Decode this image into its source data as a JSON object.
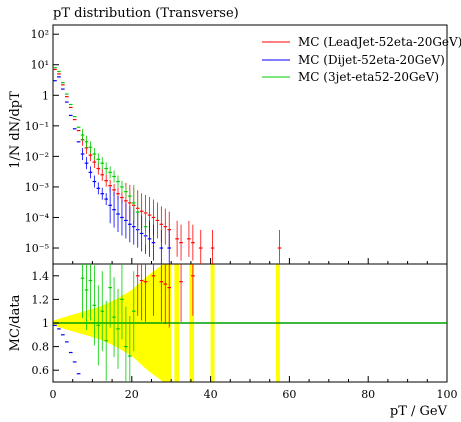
{
  "chart_data": {
    "type": "scatter",
    "title": "pT distribution (Transverse)",
    "xlabel": "pT / GeV",
    "ylabel": "1/N dN/dpT",
    "ratio_ylabel": "MC/data",
    "xlim": [
      0,
      100
    ],
    "ylim": [
      3e-06,
      200
    ],
    "yscale": "log",
    "ratio_ylim": [
      0.5,
      1.5
    ],
    "x_ticks": [
      0,
      20,
      40,
      60,
      80,
      100
    ],
    "y_ticks": [
      {
        "v": 100,
        "label": "10²"
      },
      {
        "v": 10,
        "label": "10¹"
      },
      {
        "v": 1,
        "label": "1"
      },
      {
        "v": 0.1,
        "label": "10⁻¹"
      },
      {
        "v": 0.01,
        "label": "10⁻²"
      },
      {
        "v": 0.001,
        "label": "10⁻³"
      },
      {
        "v": 0.0001,
        "label": "10⁻⁴"
      },
      {
        "v": 1e-05,
        "label": "10⁻⁵"
      }
    ],
    "ratio_ticks": [
      {
        "v": 0.6,
        "label": "0.6"
      },
      {
        "v": 0.8,
        "label": "0.8"
      },
      {
        "v": 1.0,
        "label": "1"
      },
      {
        "v": 1.2,
        "label": "1.2"
      },
      {
        "v": 1.4,
        "label": "1.4"
      }
    ],
    "legend_position": "top-right",
    "series": [
      {
        "name": "MC (LeadJet-52eta-20GeV)",
        "color": "#ff0000",
        "x": [
          0.5,
          1.5,
          2.5,
          3.5,
          4.5,
          5.5,
          6.5,
          7.5,
          8.5,
          9.5,
          10.5,
          11.5,
          12.5,
          13.5,
          14.5,
          15.5,
          16.5,
          17.5,
          18.5,
          19.5,
          20.5,
          21.5,
          22.5,
          23.5,
          24.5,
          25.5,
          26.5,
          27.5,
          28.5,
          29.5,
          31.5,
          32.5,
          34.5,
          35.5,
          37.5,
          40.5,
          57.5
        ],
        "y": [
          7,
          5,
          2.2,
          0.9,
          0.4,
          0.16,
          0.07,
          0.035,
          0.019,
          0.011,
          0.0065,
          0.004,
          0.0025,
          0.0016,
          0.0011,
          0.0008,
          0.0006,
          0.00045,
          0.00035,
          0.0003,
          0.00025,
          0.0002,
          0.00016,
          0.00014,
          0.00012,
          0.0001,
          8e-05,
          6e-05,
          5e-05,
          4e-05,
          2e-05,
          1.5e-05,
          2e-05,
          1.5e-05,
          1e-05,
          1e-05,
          1e-05
        ]
      },
      {
        "name": "MC (Dijet-52eta-20GeV)",
        "color": "#0000ff",
        "x": [
          0.5,
          1.5,
          2.5,
          3.5,
          4.5,
          5.5,
          6.5,
          7.5,
          8.5,
          9.5,
          10.5,
          11.5,
          12.5,
          13.5,
          14.5,
          15.5,
          16.5,
          17.5,
          18.5,
          19.5,
          20.5,
          21.5,
          22.5,
          23.5,
          24.5,
          25.5,
          27.5,
          29.5
        ],
        "y": [
          3,
          4,
          1.6,
          0.6,
          0.22,
          0.08,
          0.03,
          0.012,
          0.006,
          0.003,
          0.0015,
          0.0009,
          0.0006,
          0.0004,
          0.00025,
          0.00018,
          0.00013,
          0.0001,
          8e-05,
          6e-05,
          5e-05,
          4e-05,
          3e-05,
          2.5e-05,
          2e-05,
          1.5e-05,
          1e-05,
          1e-05
        ]
      },
      {
        "name": "MC (3jet-eta52-20GeV)",
        "color": "#00cc00",
        "x": [
          0.5,
          1.5,
          2.5,
          3.5,
          4.5,
          5.5,
          6.5,
          7.5,
          8.5,
          9.5,
          10.5,
          11.5,
          12.5,
          13.5,
          14.5,
          15.5,
          16.5,
          17.5,
          18.5,
          19.5,
          20.5,
          21.5,
          23.5
        ],
        "y": [
          8,
          6,
          2.6,
          1.1,
          0.5,
          0.2,
          0.09,
          0.05,
          0.03,
          0.02,
          0.012,
          0.008,
          0.006,
          0.004,
          0.003,
          0.0022,
          0.0015,
          0.001,
          0.0007,
          0.0005,
          0.0003,
          0.00015,
          5e-05
        ]
      }
    ],
    "ratio_series": [
      {
        "name": "MC (Dijet-52eta-20GeV)",
        "x": [
          0.5,
          1.5,
          2.5,
          3.5,
          4.5,
          5.5,
          6.5
        ],
        "y": [
          0.98,
          0.95,
          0.9,
          0.84,
          0.75,
          0.67,
          0.57
        ]
      },
      {
        "name": "MC (3jet-eta52-20GeV)",
        "x": [
          7.5,
          8.5,
          9.5,
          10.5,
          11.5,
          12.5,
          13.5,
          14.5,
          15.5,
          16.5,
          17.5,
          18.5,
          19.5,
          20.5
        ],
        "y": [
          1.38,
          1.28,
          1.36,
          1.15,
          0.98,
          1.1,
          0.85,
          1.3,
          1.05,
          0.95,
          1.2,
          0.8,
          0.72,
          1.1
        ]
      },
      {
        "name": "MC (LeadJet-52eta-20GeV)",
        "x": [
          21.5,
          22.5,
          23.5,
          25.5,
          27.5,
          28.5,
          29.5,
          32.5,
          35.5
        ],
        "y": [
          1.4,
          1.36,
          1.35,
          1.4,
          1.35,
          1.33,
          1.3,
          1.35,
          1.4
        ]
      }
    ],
    "ratio_band": {
      "color": "#ffff00",
      "x": [
        0,
        2,
        4,
        6,
        8,
        10,
        12,
        14,
        16,
        18,
        20,
        22,
        24,
        26,
        28,
        30
      ],
      "half_width": [
        0.02,
        0.04,
        0.06,
        0.08,
        0.1,
        0.12,
        0.14,
        0.17,
        0.2,
        0.24,
        0.28,
        0.34,
        0.4,
        0.45,
        0.5,
        0.5
      ],
      "spikes": [
        [
          30.8,
          32.0
        ],
        [
          34.6,
          35.8
        ],
        [
          40.0,
          41.0
        ],
        [
          56.6,
          57.6
        ]
      ]
    }
  }
}
